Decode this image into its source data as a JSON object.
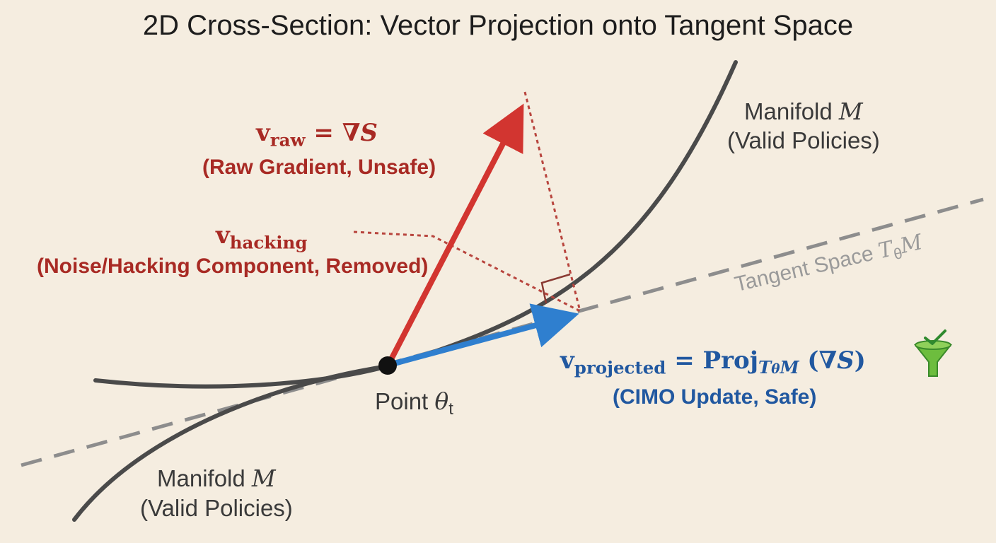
{
  "title": "2D Cross-Section: Vector Projection onto Tangent Space",
  "manifold_top": {
    "line1": "Manifold",
    "symbol": "M",
    "line2": "(Valid Policies)"
  },
  "manifold_bottom": {
    "line1": "Manifold",
    "symbol": "M",
    "line2": "(Valid Policies)"
  },
  "tangent": {
    "text": "Tangent Space",
    "symbol": "T",
    "subscript": "θ",
    "symbol2": "M"
  },
  "raw": {
    "v": "v",
    "sub": "raw",
    "eq": "= ∇",
    "S": "S",
    "desc": "(Raw Gradient, Unsafe)"
  },
  "hacking": {
    "v": "v",
    "sub": "hacking",
    "desc": "(Noise/Hacking Component, Removed)"
  },
  "projected": {
    "v": "v",
    "sub": "projected",
    "eq": "= Proj",
    "T": "T",
    "theta": "θ",
    "M": "M",
    "open": " (∇",
    "S": "S",
    "close": ")",
    "desc": "(CIMO Update, Safe)"
  },
  "point": {
    "text": "Point",
    "symbol": "θ",
    "subscript": "t"
  },
  "icons": {
    "filter": "funnel-check-icon"
  },
  "colors": {
    "raw": "#d23530",
    "projected": "#2f7fcf",
    "manifold": "#4a4a4a",
    "tangent": "#8d8d8d",
    "dotted": "#b8453e",
    "check": "#3a9a3a"
  }
}
